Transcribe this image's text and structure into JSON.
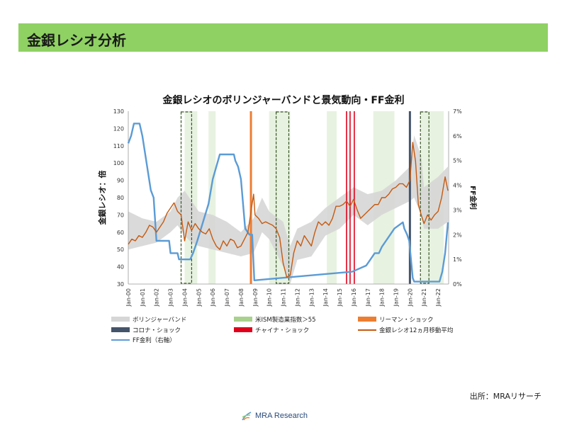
{
  "header": {
    "title": "金銀レシオ分析"
  },
  "footer": {
    "source": "出所：MRAリサーチ",
    "logo_text": "MRA Research"
  },
  "colors": {
    "header_bg": "#8fd163",
    "bollinger": "#d6d6d6",
    "ism": "#a9d18e",
    "lehman": "#ed7d31",
    "covid": "#44546a",
    "china": "#e0001b",
    "ratio": "#c55a11",
    "ff": "#5b9bd5",
    "recession_box": "#375623"
  },
  "chart_data": {
    "type": "line",
    "title": "金銀レシオのボリンジャーバンドと景気動向・FF金利",
    "ylabel": "金銀レシオ：倍",
    "y2label": "FF金利",
    "ylim": [
      30,
      130
    ],
    "y2lim": [
      0,
      7
    ],
    "yticks": [
      "30",
      "40",
      "50",
      "60",
      "70",
      "80",
      "90",
      "100",
      "110",
      "120",
      "130"
    ],
    "y2ticks": [
      "0%",
      "1%",
      "2%",
      "3%",
      "4%",
      "5%",
      "6%",
      "7%"
    ],
    "xlim": [
      2000.0,
      2022.75
    ],
    "xticks": [
      "Jan-00",
      "Jan-01",
      "Jan-02",
      "Jan-03",
      "Jan-04",
      "Jan-05",
      "Jan-06",
      "Jan-07",
      "Jan-08",
      "Jan-09",
      "Jan-10",
      "Jan-11",
      "Jan-12",
      "Jan-13",
      "Jan-14",
      "Jan-15",
      "Jan-16",
      "Jan-17",
      "Jan-18",
      "Jan-19",
      "Jan-20",
      "Jan-21",
      "Jan-22"
    ],
    "legend": [
      {
        "key": "bollinger",
        "label": "ボリンジャーバンド",
        "kind": "area"
      },
      {
        "key": "ism",
        "label": "米ISM製造業指数＞55",
        "kind": "area"
      },
      {
        "key": "lehman",
        "label": "リーマン・ショック",
        "kind": "area"
      },
      {
        "key": "covid",
        "label": "コロナ・ショック",
        "kind": "area"
      },
      {
        "key": "china",
        "label": "チャイナ・ショック",
        "kind": "area"
      },
      {
        "key": "ratio",
        "label": "金銀レシオ12ヵ月移動平均",
        "kind": "line"
      },
      {
        "key": "ff",
        "label": "FF金利（右軸）",
        "kind": "line"
      }
    ],
    "events": {
      "lehman": [
        2008.71
      ],
      "covid": [
        2020.0
      ],
      "china": [
        2015.5,
        2015.75,
        2016.05
      ]
    },
    "recession_boxes": [
      [
        2003.75,
        2004.5
      ],
      [
        2010.5,
        2011.4
      ],
      [
        2020.75,
        2021.35
      ]
    ],
    "ism_periods": [
      [
        2004.0,
        2004.9
      ],
      [
        2005.7,
        2006.2
      ],
      [
        2010.0,
        2011.5
      ],
      [
        2014.1,
        2014.8
      ],
      [
        2017.4,
        2018.9
      ],
      [
        2020.8,
        2022.4
      ]
    ],
    "ratio": {
      "x": [
        2000.0,
        2000.25,
        2000.5,
        2000.75,
        2001.0,
        2001.25,
        2001.5,
        2001.75,
        2002.0,
        2002.25,
        2002.5,
        2002.75,
        2003.0,
        2003.25,
        2003.5,
        2003.75,
        2004.0,
        2004.25,
        2004.5,
        2004.75,
        2005.0,
        2005.25,
        2005.5,
        2005.75,
        2006.0,
        2006.25,
        2006.5,
        2006.75,
        2007.0,
        2007.25,
        2007.5,
        2007.75,
        2008.0,
        2008.25,
        2008.5,
        2008.75,
        2008.9,
        2009.0,
        2009.25,
        2009.5,
        2009.75,
        2010.0,
        2010.25,
        2010.5,
        2010.75,
        2011.0,
        2011.25,
        2011.5,
        2011.75,
        2012.0,
        2012.25,
        2012.5,
        2012.75,
        2013.0,
        2013.25,
        2013.5,
        2013.75,
        2014.0,
        2014.25,
        2014.5,
        2014.75,
        2015.0,
        2015.25,
        2015.5,
        2015.75,
        2016.0,
        2016.25,
        2016.5,
        2016.75,
        2017.0,
        2017.25,
        2017.5,
        2017.75,
        2018.0,
        2018.25,
        2018.5,
        2018.75,
        2019.0,
        2019.25,
        2019.5,
        2019.75,
        2020.0,
        2020.2,
        2020.4,
        2020.6,
        2020.8,
        2021.0,
        2021.25,
        2021.5,
        2021.75,
        2022.0,
        2022.25,
        2022.5,
        2022.7
      ],
      "y": [
        53,
        56,
        55,
        58,
        57,
        60,
        64,
        63,
        60,
        63,
        66,
        71,
        74,
        77,
        72,
        70,
        55,
        66,
        61,
        65,
        62,
        60,
        59,
        62,
        56,
        52,
        50,
        55,
        52,
        56,
        55,
        51,
        52,
        56,
        60,
        74,
        82,
        70,
        68,
        65,
        66,
        65,
        64,
        62,
        57,
        42,
        34,
        35,
        48,
        55,
        52,
        58,
        55,
        52,
        60,
        66,
        64,
        66,
        64,
        68,
        75,
        75,
        76,
        78,
        75,
        79,
        73,
        68,
        70,
        72,
        74,
        76,
        76,
        80,
        80,
        82,
        85,
        86,
        88,
        88,
        86,
        90,
        112,
        101,
        76,
        70,
        65,
        70,
        67,
        70,
        72,
        80,
        92,
        84
      ]
    },
    "bollinger": {
      "x": [
        2000.0,
        2001.0,
        2002.0,
        2003.0,
        2003.5,
        2004.0,
        2004.5,
        2005.0,
        2006.0,
        2007.0,
        2008.0,
        2008.9,
        2009.5,
        2010.0,
        2011.0,
        2011.5,
        2012.0,
        2013.0,
        2014.0,
        2015.0,
        2016.0,
        2017.0,
        2018.0,
        2019.0,
        2020.0,
        2020.3,
        2020.8,
        2021.0,
        2022.0,
        2022.7
      ],
      "upper": [
        72,
        68,
        66,
        72,
        80,
        84,
        78,
        72,
        70,
        66,
        60,
        68,
        80,
        72,
        66,
        52,
        62,
        66,
        74,
        80,
        86,
        82,
        84,
        90,
        98,
        116,
        104,
        86,
        92,
        98
      ],
      "lower": [
        50,
        52,
        54,
        60,
        64,
        58,
        54,
        52,
        50,
        48,
        46,
        48,
        60,
        56,
        40,
        30,
        44,
        46,
        58,
        62,
        70,
        64,
        70,
        74,
        78,
        80,
        70,
        62,
        62,
        66
      ]
    },
    "ff": {
      "x": [
        2000.0,
        2000.2,
        2000.4,
        2000.8,
        2001.0,
        2001.3,
        2001.6,
        2001.8,
        2002.0,
        2002.9,
        2003.0,
        2003.5,
        2003.6,
        2004.4,
        2004.6,
        2004.9,
        2005.3,
        2005.7,
        2006.0,
        2006.5,
        2007.5,
        2007.6,
        2007.8,
        2008.0,
        2008.3,
        2008.6,
        2008.8,
        2008.95,
        2015.9,
        2016.9,
        2017.2,
        2017.5,
        2017.8,
        2018.0,
        2018.3,
        2018.6,
        2018.9,
        2019.5,
        2019.6,
        2019.8,
        2019.95,
        2020.2,
        2020.3,
        2022.1,
        2022.3,
        2022.5,
        2022.7
      ],
      "y": [
        5.7,
        6.0,
        6.5,
        6.5,
        6.0,
        4.9,
        3.8,
        3.5,
        1.75,
        1.75,
        1.25,
        1.25,
        1.0,
        1.0,
        1.25,
        1.75,
        2.5,
        3.25,
        4.25,
        5.25,
        5.25,
        5.0,
        4.75,
        4.25,
        2.25,
        2.0,
        2.0,
        0.15,
        0.5,
        0.75,
        1.0,
        1.25,
        1.25,
        1.5,
        1.75,
        2.0,
        2.25,
        2.5,
        2.25,
        2.0,
        1.75,
        0.25,
        0.1,
        0.1,
        0.5,
        1.25,
        2.5
      ]
    }
  }
}
